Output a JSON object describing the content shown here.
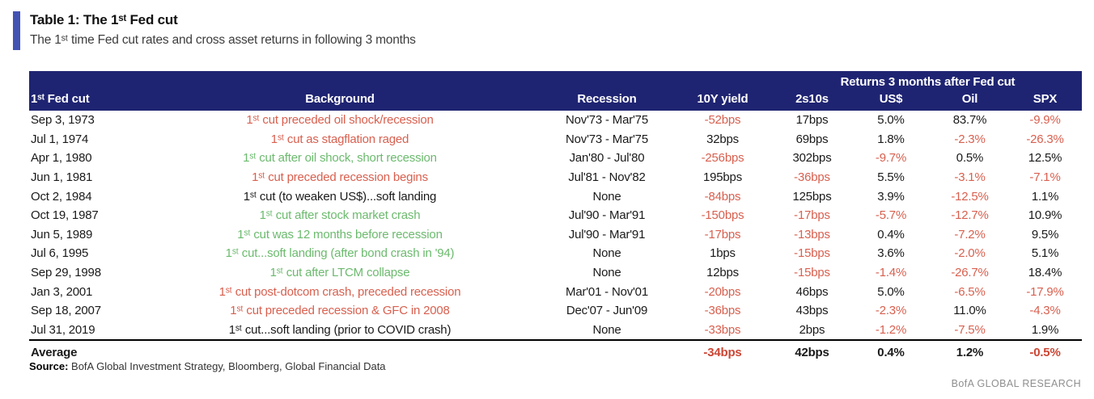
{
  "header": {
    "title": "Table 1: The 1ˢᵗ Fed cut",
    "subtitle": "The 1ˢᵗ time Fed cut rates and cross asset returns in following 3 months"
  },
  "colors": {
    "header_navy": "#1f2472",
    "accent_blue": "#4353b4",
    "negative_red": "#d8604f",
    "positive_green": "#6cba6e",
    "text_black": "#1a1a1a"
  },
  "table": {
    "span_header": "Returns 3 months after Fed cut",
    "columns": [
      "1ˢᵗ Fed cut",
      "Background",
      "Recession",
      "10Y yield",
      "2s10s",
      "US$",
      "Oil",
      "SPX"
    ],
    "rows": [
      [
        {
          "t": "Sep 3, 1973",
          "c": "k"
        },
        {
          "t": "1ˢᵗ cut preceded oil shock/recession",
          "c": "r"
        },
        {
          "t": "Nov'73 - Mar'75",
          "c": "k"
        },
        {
          "t": "-52bps",
          "c": "r"
        },
        {
          "t": "17bps",
          "c": "k"
        },
        {
          "t": "5.0%",
          "c": "k"
        },
        {
          "t": "83.7%",
          "c": "k"
        },
        {
          "t": "-9.9%",
          "c": "r"
        }
      ],
      [
        {
          "t": "Jul 1, 1974",
          "c": "k"
        },
        {
          "t": "1ˢᵗ cut as stagflation raged",
          "c": "r"
        },
        {
          "t": "Nov'73 - Mar'75",
          "c": "k"
        },
        {
          "t": "32bps",
          "c": "k"
        },
        {
          "t": "69bps",
          "c": "k"
        },
        {
          "t": "1.8%",
          "c": "k"
        },
        {
          "t": "-2.3%",
          "c": "r"
        },
        {
          "t": "-26.3%",
          "c": "r"
        }
      ],
      [
        {
          "t": "Apr 1, 1980",
          "c": "k"
        },
        {
          "t": "1ˢᵗ cut after oil shock, short recession",
          "c": "g"
        },
        {
          "t": "Jan'80 - Jul'80",
          "c": "k"
        },
        {
          "t": "-256bps",
          "c": "r"
        },
        {
          "t": "302bps",
          "c": "k"
        },
        {
          "t": "-9.7%",
          "c": "r"
        },
        {
          "t": "0.5%",
          "c": "k"
        },
        {
          "t": "12.5%",
          "c": "k"
        }
      ],
      [
        {
          "t": "Jun 1, 1981",
          "c": "k"
        },
        {
          "t": "1ˢᵗ cut preceded recession begins",
          "c": "r"
        },
        {
          "t": "Jul'81 - Nov'82",
          "c": "k"
        },
        {
          "t": "195bps",
          "c": "k"
        },
        {
          "t": "-36bps",
          "c": "r"
        },
        {
          "t": "5.5%",
          "c": "k"
        },
        {
          "t": "-3.1%",
          "c": "r"
        },
        {
          "t": "-7.1%",
          "c": "r"
        }
      ],
      [
        {
          "t": "Oct 2, 1984",
          "c": "k"
        },
        {
          "t": "1ˢᵗ cut (to weaken US$)...soft landing",
          "c": "k"
        },
        {
          "t": "None",
          "c": "k"
        },
        {
          "t": "-84bps",
          "c": "r"
        },
        {
          "t": "125bps",
          "c": "k"
        },
        {
          "t": "3.9%",
          "c": "k"
        },
        {
          "t": "-12.5%",
          "c": "r"
        },
        {
          "t": "1.1%",
          "c": "k"
        }
      ],
      [
        {
          "t": "Oct 19, 1987",
          "c": "k"
        },
        {
          "t": "1ˢᵗ cut after stock market crash",
          "c": "g"
        },
        {
          "t": "Jul'90 - Mar'91",
          "c": "k"
        },
        {
          "t": "-150bps",
          "c": "r"
        },
        {
          "t": "-17bps",
          "c": "r"
        },
        {
          "t": "-5.7%",
          "c": "r"
        },
        {
          "t": "-12.7%",
          "c": "r"
        },
        {
          "t": "10.9%",
          "c": "k"
        }
      ],
      [
        {
          "t": "Jun 5, 1989",
          "c": "k"
        },
        {
          "t": "1ˢᵗ cut was 12 months before recession",
          "c": "g"
        },
        {
          "t": "Jul'90 - Mar'91",
          "c": "k"
        },
        {
          "t": "-17bps",
          "c": "r"
        },
        {
          "t": "-13bps",
          "c": "r"
        },
        {
          "t": "0.4%",
          "c": "k"
        },
        {
          "t": "-7.2%",
          "c": "r"
        },
        {
          "t": "9.5%",
          "c": "k"
        }
      ],
      [
        {
          "t": "Jul 6, 1995",
          "c": "k"
        },
        {
          "t": "1ˢᵗ cut...soft landing (after bond crash in '94)",
          "c": "g"
        },
        {
          "t": "None",
          "c": "k"
        },
        {
          "t": "1bps",
          "c": "k"
        },
        {
          "t": "-15bps",
          "c": "r"
        },
        {
          "t": "3.6%",
          "c": "k"
        },
        {
          "t": "-2.0%",
          "c": "r"
        },
        {
          "t": "5.1%",
          "c": "k"
        }
      ],
      [
        {
          "t": "Sep 29, 1998",
          "c": "k"
        },
        {
          "t": "1ˢᵗ cut after LTCM collapse",
          "c": "g"
        },
        {
          "t": "None",
          "c": "k"
        },
        {
          "t": "12bps",
          "c": "k"
        },
        {
          "t": "-15bps",
          "c": "r"
        },
        {
          "t": "-1.4%",
          "c": "r"
        },
        {
          "t": "-26.7%",
          "c": "r"
        },
        {
          "t": "18.4%",
          "c": "k"
        }
      ],
      [
        {
          "t": "Jan 3, 2001",
          "c": "k"
        },
        {
          "t": "1ˢᵗ cut post-dotcom crash, preceded recession",
          "c": "r"
        },
        {
          "t": "Mar'01 - Nov'01",
          "c": "k"
        },
        {
          "t": "-20bps",
          "c": "r"
        },
        {
          "t": "46bps",
          "c": "k"
        },
        {
          "t": "5.0%",
          "c": "k"
        },
        {
          "t": "-6.5%",
          "c": "r"
        },
        {
          "t": "-17.9%",
          "c": "r"
        }
      ],
      [
        {
          "t": "Sep 18, 2007",
          "c": "k"
        },
        {
          "t": "1ˢᵗ cut preceded recession & GFC in 2008",
          "c": "r"
        },
        {
          "t": "Dec'07 - Jun'09",
          "c": "k"
        },
        {
          "t": "-36bps",
          "c": "r"
        },
        {
          "t": "43bps",
          "c": "k"
        },
        {
          "t": "-2.3%",
          "c": "r"
        },
        {
          "t": "11.0%",
          "c": "k"
        },
        {
          "t": "-4.3%",
          "c": "r"
        }
      ],
      [
        {
          "t": "Jul 31, 2019",
          "c": "k"
        },
        {
          "t": "1ˢᵗ cut...soft landing (prior to COVID crash)",
          "c": "k"
        },
        {
          "t": "None",
          "c": "k"
        },
        {
          "t": "-33bps",
          "c": "r"
        },
        {
          "t": "2bps",
          "c": "k"
        },
        {
          "t": "-1.2%",
          "c": "r"
        },
        {
          "t": "-7.5%",
          "c": "r"
        },
        {
          "t": "1.9%",
          "c": "k"
        }
      ]
    ],
    "average": [
      {
        "t": "Average",
        "c": "k"
      },
      {
        "t": "",
        "c": "k"
      },
      {
        "t": "",
        "c": "k"
      },
      {
        "t": "-34bps",
        "c": "r"
      },
      {
        "t": "42bps",
        "c": "k"
      },
      {
        "t": "0.4%",
        "c": "k"
      },
      {
        "t": "1.2%",
        "c": "k"
      },
      {
        "t": "-0.5%",
        "c": "r"
      }
    ]
  },
  "footer": {
    "source_label": "Source:",
    "source_text": "  BofA Global Investment Strategy, Bloomberg, Global Financial Data",
    "brand": "BofA GLOBAL RESEARCH"
  }
}
